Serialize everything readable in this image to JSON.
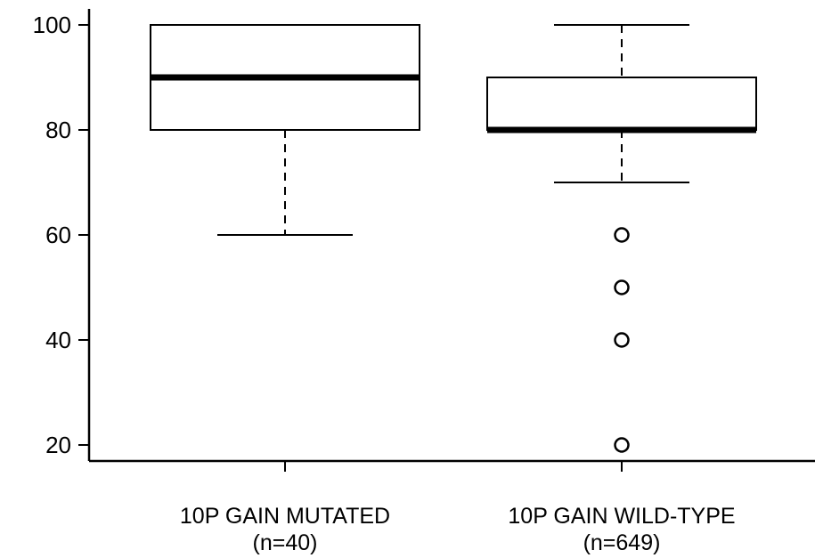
{
  "chart_data": {
    "type": "boxplot",
    "title": "",
    "xlabel": "",
    "ylabel": "",
    "ylim": [
      17,
      101
    ],
    "y_ticks": [
      {
        "value": 20,
        "label": "20"
      },
      {
        "value": 40,
        "label": "40"
      },
      {
        "value": 60,
        "label": "60"
      },
      {
        "value": 80,
        "label": "80"
      },
      {
        "value": 100,
        "label": "100"
      }
    ],
    "categories": [
      {
        "label": "10P GAIN MUTATED",
        "n_label": "(n=40)",
        "whisker_low": 60,
        "q1": 80,
        "median": 90,
        "q3": 100,
        "whisker_high": 100,
        "outliers": []
      },
      {
        "label": "10P GAIN WILD-TYPE",
        "n_label": "(n=649)",
        "whisker_low": 70,
        "q1": 80,
        "median": 80,
        "q3": 90,
        "whisker_high": 100,
        "outliers": [
          60,
          50,
          40,
          20
        ]
      }
    ],
    "grid": false,
    "legend": "none"
  }
}
